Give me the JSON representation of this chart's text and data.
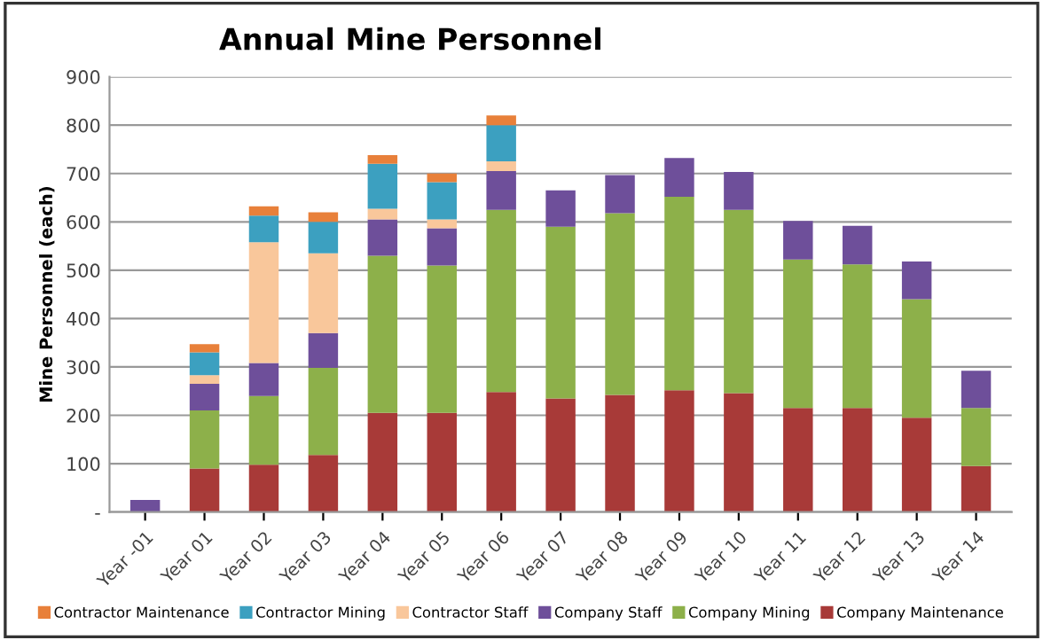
{
  "chart_data": {
    "type": "bar",
    "title": "Annual Mine Personnel",
    "ylabel": "Mine Personnel (each)",
    "categories": [
      "Year -01",
      "Year 01",
      "Year 02",
      "Year 03",
      "Year 04",
      "Year 05",
      "Year 06",
      "Year 07",
      "Year 08",
      "Year 09",
      "Year 10",
      "Year 11",
      "Year 12",
      "Year 13",
      "Year 14"
    ],
    "stacked": true,
    "series": [
      {
        "name": "Company Maintenance",
        "color": "#a83a38",
        "values": [
          0,
          90,
          98,
          118,
          205,
          205,
          248,
          235,
          242,
          252,
          246,
          215,
          215,
          195,
          95
        ]
      },
      {
        "name": "Company Mining",
        "color": "#8db04a",
        "values": [
          0,
          120,
          142,
          180,
          325,
          305,
          377,
          355,
          376,
          400,
          379,
          307,
          297,
          245,
          120
        ]
      },
      {
        "name": "Company Staff",
        "color": "#6e4f9a",
        "values": [
          25,
          55,
          68,
          72,
          75,
          77,
          80,
          75,
          79,
          80,
          78,
          80,
          80,
          78,
          77
        ]
      },
      {
        "name": "Contractor Staff",
        "color": "#f9c79b",
        "values": [
          0,
          18,
          250,
          165,
          22,
          18,
          20,
          0,
          0,
          0,
          0,
          0,
          0,
          0,
          0
        ]
      },
      {
        "name": "Contractor Mining",
        "color": "#3ca0c0",
        "values": [
          0,
          47,
          55,
          65,
          93,
          77,
          75,
          0,
          0,
          0,
          0,
          0,
          0,
          0,
          0
        ]
      },
      {
        "name": "Contractor Maintenance",
        "color": "#e8803a",
        "values": [
          0,
          17,
          19,
          20,
          18,
          18,
          20,
          0,
          0,
          0,
          0,
          0,
          0,
          0,
          0
        ]
      }
    ],
    "ylim": [
      0,
      900
    ],
    "yticks": [
      {
        "value": 0,
        "label": "-"
      },
      100,
      200,
      300,
      400,
      500,
      600,
      700,
      800,
      900
    ],
    "grid": "y",
    "legend": "bottom"
  }
}
